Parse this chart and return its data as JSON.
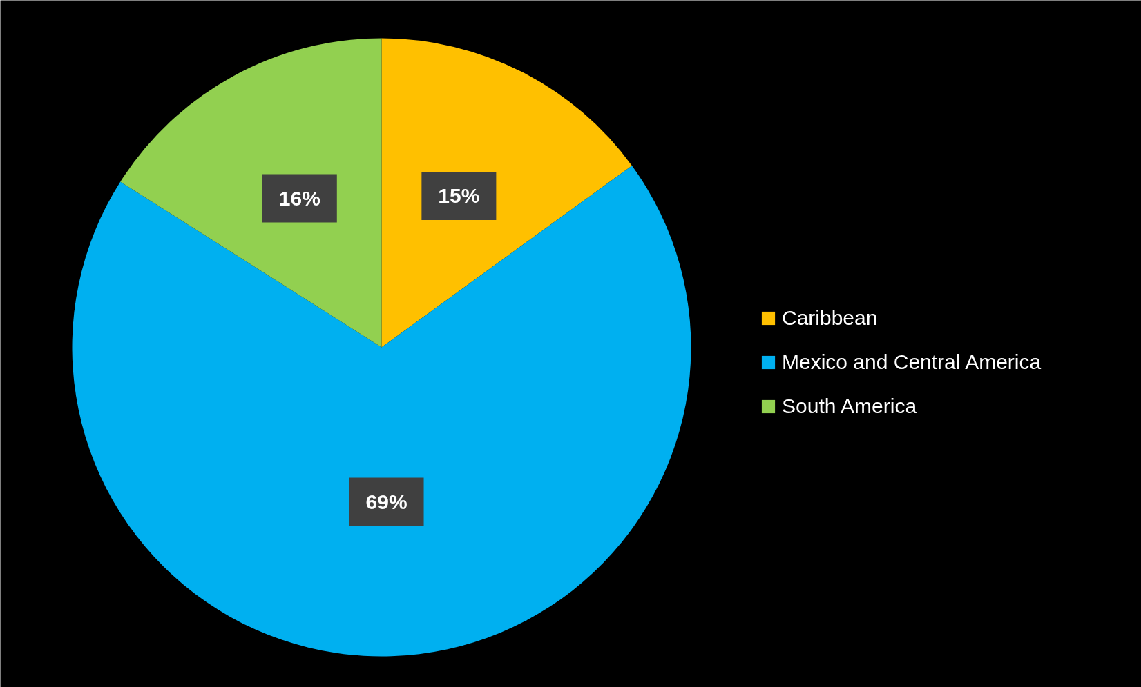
{
  "chart_data": {
    "type": "pie",
    "categories": [
      "Caribbean",
      "Mexico and Central America",
      "South America"
    ],
    "values": [
      15,
      69,
      16
    ],
    "colors": [
      "#ffc000",
      "#00b0f0",
      "#92d050"
    ],
    "value_labels": [
      "15%",
      "69%",
      "16%"
    ],
    "legend": "right"
  }
}
